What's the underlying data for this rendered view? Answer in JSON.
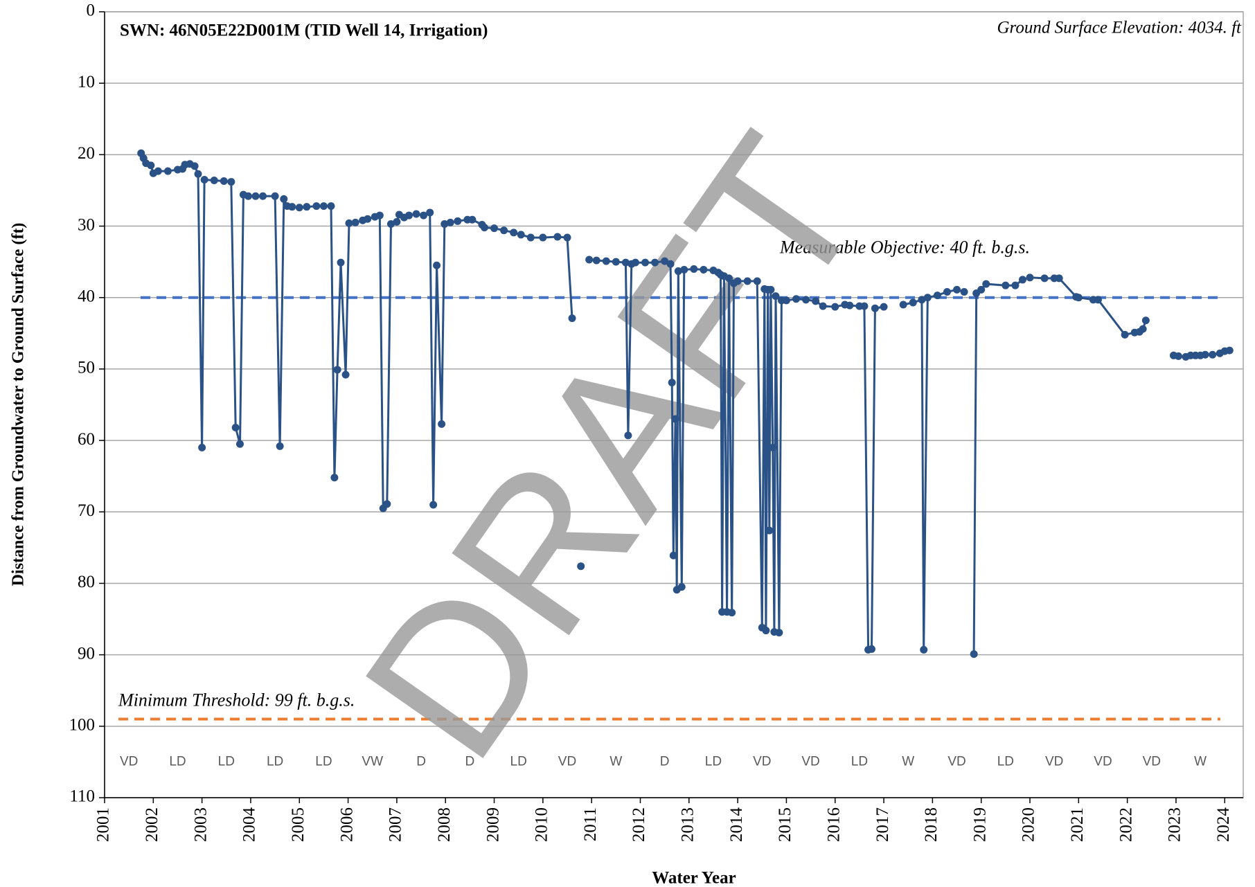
{
  "chart_data": {
    "type": "line",
    "title": "SWN: 46N05E22D001M (TID Well 14, Irrigation)",
    "subtitle": "Ground Surface Elevation: 4034. ft",
    "x_label": "Water Year",
    "y_label": "Distance from Groundwater to Ground Surface (ft)",
    "watermark": "DRAFT",
    "xlim": [
      2001,
      2024.38
    ],
    "xticks": [
      2001,
      2002,
      2003,
      2004,
      2005,
      2006,
      2007,
      2008,
      2009,
      2010,
      2011,
      2012,
      2013,
      2014,
      2015,
      2016,
      2017,
      2018,
      2019,
      2020,
      2021,
      2022,
      2023,
      2024
    ],
    "ylim": [
      0,
      110
    ],
    "y_inverted": true,
    "yticks": [
      0,
      10,
      20,
      30,
      40,
      50,
      60,
      70,
      80,
      90,
      100,
      110
    ],
    "grid": true,
    "reference_lines": [
      {
        "value": 40,
        "color": "#4472c4",
        "label": "Measurable Objective: 40 ft. b.g.s."
      },
      {
        "value": 99,
        "color": "#ed7d31",
        "label": "Minimum Threshold: 99 ft. b.g.s."
      }
    ],
    "water_year_types": [
      "VD",
      "LD",
      "LD",
      "LD",
      "LD",
      "VW",
      "D",
      "D",
      "LD",
      "VD",
      "W",
      "D",
      "LD",
      "VD",
      "VD",
      "LD",
      "W",
      "VD",
      "LD",
      "VD",
      "VD",
      "VD",
      "W"
    ],
    "series": [
      {
        "color": "#2a5287",
        "x": [
          2001.75,
          2001.8,
          2001.85,
          2001.95,
          2002.0,
          2002.1,
          2002.3,
          2002.5,
          2002.6,
          2002.65,
          2002.75,
          2002.85,
          2002.92,
          2003.0,
          2003.05,
          2003.25,
          2003.45,
          2003.6,
          2003.69,
          2003.78,
          2003.85,
          2003.95,
          2004.1,
          2004.25,
          2004.5,
          2004.6,
          2004.68,
          2004.75,
          2004.85,
          2005.0,
          2005.15,
          2005.35,
          2005.5,
          2005.65,
          2005.72,
          2005.78,
          2005.85,
          2005.95,
          2006.02,
          2006.15,
          2006.3,
          2006.4,
          2006.55,
          2006.65,
          2006.72,
          2006.8,
          2006.88,
          2007.0,
          2007.05,
          2007.15,
          2007.25,
          2007.4,
          2007.55,
          2007.68,
          2007.75,
          2007.82,
          2007.92,
          2007.98,
          2008.1,
          2008.25,
          2008.45,
          2008.55,
          2008.75,
          2008.8,
          2009.0,
          2009.2,
          2009.4,
          2009.55,
          2009.75,
          2010.0,
          2010.3,
          2010.5,
          2010.6,
          null,
          2010.78,
          null,
          2010.95,
          2011.1,
          2011.3,
          2011.5,
          2011.7,
          2011.75,
          2011.82,
          2011.9,
          2012.1,
          2012.3,
          2012.5,
          2012.62,
          2012.65,
          2012.68,
          2012.72,
          2012.75,
          2012.78,
          2012.85,
          2012.9,
          2013.1,
          2013.3,
          2013.5,
          2013.6,
          2013.65,
          2013.68,
          2013.72,
          2013.78,
          2013.82,
          2013.88,
          2013.92,
          2014.0,
          2014.2,
          2014.4,
          2014.5,
          2014.55,
          2014.58,
          2014.62,
          2014.65,
          2014.68,
          2014.72,
          2014.75,
          2014.78,
          2014.85,
          2014.9,
          2015.0,
          2015.2,
          2015.4,
          2015.6,
          2015.75,
          2016.0,
          2016.2,
          2016.3,
          2016.5,
          2016.6,
          2016.68,
          2016.75,
          2016.82,
          2017.0,
          null,
          2017.4,
          2017.6,
          2017.78,
          2017.82,
          2017.9,
          2018.1,
          2018.3,
          2018.5,
          2018.65,
          null,
          2018.85,
          2018.9,
          2019.0,
          2019.1,
          2019.5,
          2019.7,
          2019.85,
          2020.0,
          2020.3,
          2020.5,
          2020.6,
          2020.95,
          2021.0,
          2021.3,
          2021.4,
          2021.95,
          2022.15,
          2022.25,
          2022.32,
          2022.38,
          null,
          2022.95,
          2023.05,
          2023.2,
          2023.3,
          2023.4,
          2023.5,
          2023.6,
          2023.75,
          2023.9,
          2024.0,
          2024.1
        ],
        "values": [
          19.8,
          20.5,
          21.2,
          21.5,
          22.6,
          22.3,
          22.3,
          22.1,
          22.0,
          21.4,
          21.3,
          21.6,
          22.7,
          61,
          23.5,
          23.6,
          23.7,
          23.8,
          58.2,
          60.5,
          25.6,
          25.8,
          25.8,
          25.8,
          25.8,
          60.8,
          26.2,
          27.2,
          27.3,
          27.4,
          27.3,
          27.2,
          27.2,
          27.2,
          65.2,
          50.1,
          35.1,
          50.8,
          29.6,
          29.5,
          29.2,
          29.0,
          28.7,
          28.5,
          69.5,
          68.9,
          29.7,
          29.4,
          28.4,
          28.8,
          28.5,
          28.3,
          28.5,
          28.1,
          69.0,
          35.5,
          57.7,
          29.7,
          29.5,
          29.3,
          29.1,
          29.1,
          29.8,
          30.2,
          30.3,
          30.6,
          30.9,
          31.2,
          31.6,
          31.6,
          31.5,
          31.6,
          42.9,
          null,
          77.6,
          null,
          34.7,
          34.8,
          34.9,
          35.0,
          35.1,
          59.3,
          35.3,
          35.1,
          35.1,
          35.1,
          34.9,
          35.3,
          51.9,
          76.1,
          57.0,
          80.9,
          36.3,
          80.5,
          36.1,
          36.0,
          36.1,
          36.2,
          36.5,
          36.8,
          84.0,
          37.0,
          84.0,
          37.3,
          84.1,
          38.0,
          37.7,
          37.7,
          37.7,
          86.2,
          38.8,
          86.6,
          38.9,
          72.6,
          38.9,
          61.0,
          86.8,
          39.8,
          86.9,
          40.4,
          40.4,
          40.2,
          40.3,
          40.5,
          41.2,
          41.3,
          41.0,
          41.1,
          41.2,
          41.2,
          89.3,
          89.2,
          41.5,
          41.3,
          null,
          41.0,
          40.7,
          40.3,
          89.3,
          40.0,
          39.7,
          39.2,
          38.9,
          39.2,
          null,
          89.9,
          39.4,
          38.9,
          38.1,
          38.3,
          38.3,
          37.5,
          37.2,
          37.3,
          37.3,
          37.3,
          39.9,
          40.0,
          40.3,
          40.3,
          45.2,
          44.9,
          44.8,
          44.4,
          43.2,
          null,
          48.1,
          48.2,
          48.3,
          48.1,
          48.1,
          48.1,
          48.0,
          48.0,
          47.8,
          47.5,
          47.4
        ]
      }
    ]
  }
}
